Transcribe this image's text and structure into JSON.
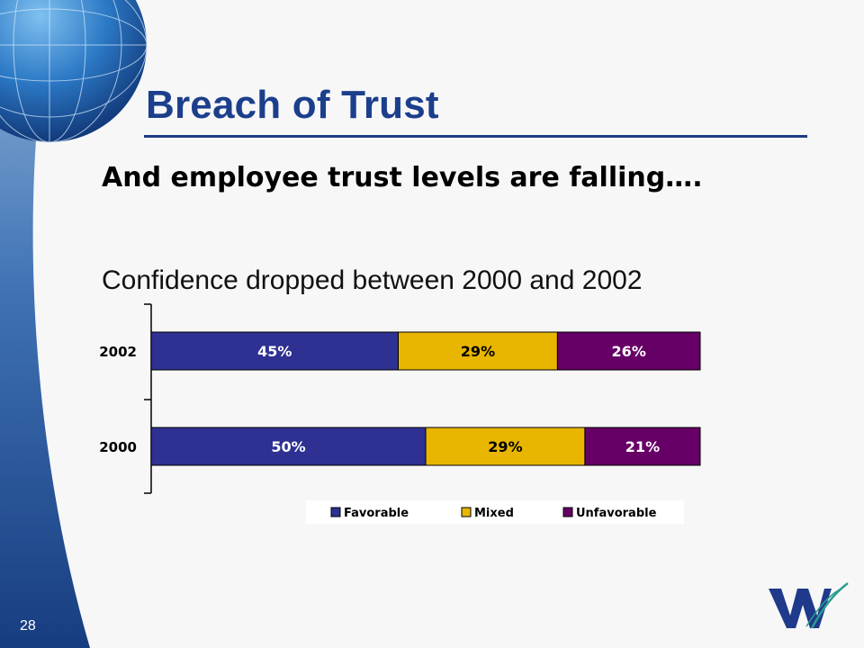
{
  "slide": {
    "title": "Breach of Trust",
    "subtitle": "And employee trust levels are falling….",
    "caption": "Confidence dropped between 2000 and 2002",
    "number": "28"
  },
  "colors": {
    "title": "#1c3f8c",
    "favorable": "#2e3192",
    "mixed": "#e8b600",
    "unfavorable": "#660066",
    "band": "#1f4a8e"
  },
  "chart_data": {
    "type": "bar",
    "orientation": "horizontal",
    "stacked": true,
    "categories": [
      "2002",
      "2000"
    ],
    "series": [
      {
        "name": "Favorable",
        "color": "#2e3192",
        "values": [
          45,
          50
        ],
        "labels": [
          "45%",
          "50%"
        ]
      },
      {
        "name": "Mixed",
        "color": "#e8b600",
        "values": [
          29,
          29
        ],
        "labels": [
          "29%",
          "29%"
        ]
      },
      {
        "name": "Unfavorable",
        "color": "#660066",
        "values": [
          26,
          21
        ],
        "labels": [
          "26%",
          "21%"
        ]
      }
    ],
    "xlim": [
      0,
      100
    ],
    "legend": "bottom",
    "grid": false
  }
}
